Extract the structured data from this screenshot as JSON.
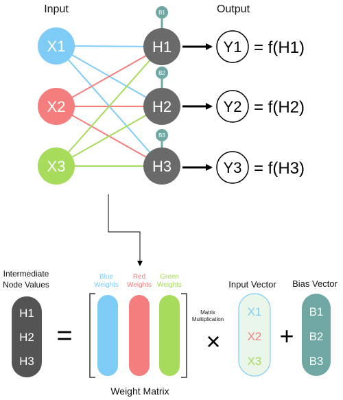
{
  "labels": {
    "input": "Input",
    "output": "Output",
    "intermediate_line1": "Intermediate",
    "intermediate_line2": "Node Values",
    "blue_weights_1": "Blue",
    "blue_weights_2": "Weights",
    "red_weights_1": "Red",
    "red_weights_2": "Weights",
    "green_weights_1": "Green",
    "green_weights_2": "Weights",
    "matrix_mult_1": "Matrix",
    "matrix_mult_2": "Multiplication",
    "input_vector": "Input Vector",
    "bias_vector": "Bias Vector",
    "weight_matrix": "Weight Matrix"
  },
  "inputs": [
    {
      "label": "X1",
      "color": "#7ecbf5"
    },
    {
      "label": "X2",
      "color": "#f47e7e"
    },
    {
      "label": "X3",
      "color": "#a7db5b"
    }
  ],
  "hidden": [
    {
      "label": "H1",
      "bias": "B1"
    },
    {
      "label": "H2",
      "bias": "B2"
    },
    {
      "label": "H3",
      "bias": "B3"
    }
  ],
  "outputs": [
    {
      "label": "Y1",
      "eq": "= f(H1)"
    },
    {
      "label": "Y2",
      "eq": "= f(H2)"
    },
    {
      "label": "Y3",
      "eq": "= f(H3)"
    }
  ],
  "equation": {
    "node_values": [
      "H1",
      "H2",
      "H3"
    ],
    "equals": "=",
    "times": "×",
    "plus": "+",
    "input_vector": [
      "X1",
      "X2",
      "X3"
    ],
    "bias_vector": [
      "B1",
      "B2",
      "B3"
    ]
  },
  "colors": {
    "hidden": "#6a6a6a",
    "bias": "#6fa8a3",
    "blue": "#7ecbf5",
    "red": "#f47e7e",
    "green": "#a7db5b",
    "dark_pill": "#545454",
    "input_vector_fill": "#eaf6e9",
    "input_vector_border": "#7ecbf5"
  }
}
